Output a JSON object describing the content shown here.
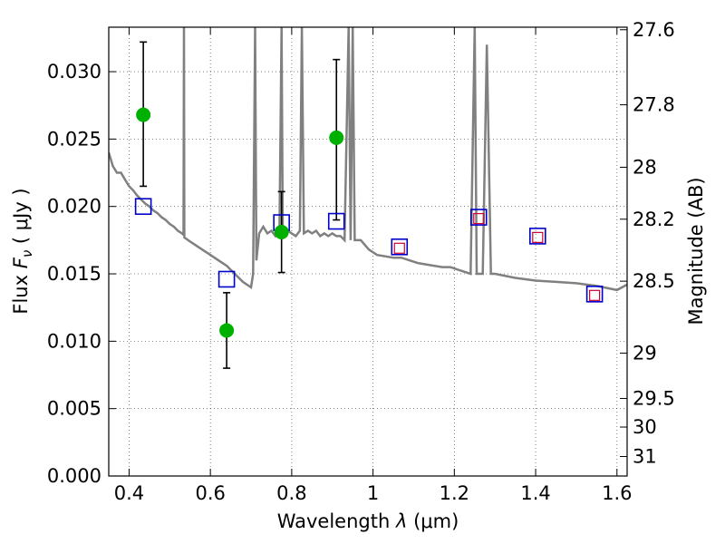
{
  "chart_data": {
    "type": "scatter",
    "xlabel": "Wavelength",
    "xlabel_symbol": "λ",
    "xlabel_unit": "(μm)",
    "ylabel": "Flux",
    "ylabel_symbol": "F",
    "ylabel_subscript": "ν",
    "ylabel_unit": "( μJy )",
    "y2label": "Magnitude (AB)",
    "xlim": [
      0.35,
      1.625
    ],
    "ylim": [
      0.0,
      0.0333
    ],
    "grid": true,
    "x_ticks": [
      0.4,
      0.6,
      0.8,
      1.0,
      1.2,
      1.4,
      1.6
    ],
    "x_tick_labels": [
      "0.4",
      "0.6",
      "0.8",
      "1",
      "1.2",
      "1.4",
      "1.6"
    ],
    "y_ticks": [
      0.0,
      0.005,
      0.01,
      0.015,
      0.02,
      0.025,
      0.03
    ],
    "y_tick_labels": [
      "0.000",
      "0.005",
      "0.010",
      "0.015",
      "0.020",
      "0.025",
      "0.030"
    ],
    "right_axis_ticks": [
      {
        "mag": 27.6,
        "label": "27.6"
      },
      {
        "mag": 27.8,
        "label": "27.8"
      },
      {
        "mag": 28.0,
        "label": "28"
      },
      {
        "mag": 28.2,
        "label": "28.2"
      },
      {
        "mag": 28.5,
        "label": "28.5"
      },
      {
        "mag": 29.0,
        "label": "29"
      },
      {
        "mag": 29.5,
        "label": "29.5"
      },
      {
        "mag": 30.0,
        "label": "30"
      },
      {
        "mag": 31.0,
        "label": "31"
      }
    ],
    "series": [
      {
        "kind": "spectrum",
        "color": "#808080",
        "points": [
          [
            0.35,
            0.024
          ],
          [
            0.36,
            0.023
          ],
          [
            0.37,
            0.0225
          ],
          [
            0.38,
            0.0225
          ],
          [
            0.39,
            0.022
          ],
          [
            0.4,
            0.0215
          ],
          [
            0.41,
            0.0212
          ],
          [
            0.42,
            0.0208
          ],
          [
            0.43,
            0.0205
          ],
          [
            0.44,
            0.0202
          ],
          [
            0.45,
            0.02
          ],
          [
            0.46,
            0.0197
          ],
          [
            0.47,
            0.0195
          ],
          [
            0.48,
            0.0192
          ],
          [
            0.49,
            0.019
          ],
          [
            0.5,
            0.0187
          ],
          [
            0.51,
            0.0185
          ],
          [
            0.52,
            0.0182
          ],
          [
            0.53,
            0.018
          ],
          [
            0.534,
            0.0179
          ],
          [
            0.535,
            0.0333
          ],
          [
            0.536,
            0.0177
          ],
          [
            0.55,
            0.0174
          ],
          [
            0.56,
            0.0172
          ],
          [
            0.58,
            0.0168
          ],
          [
            0.6,
            0.0164
          ],
          [
            0.62,
            0.016
          ],
          [
            0.64,
            0.0156
          ],
          [
            0.66,
            0.015
          ],
          [
            0.68,
            0.0144
          ],
          [
            0.7,
            0.014
          ],
          [
            0.705,
            0.015
          ],
          [
            0.71,
            0.0333
          ],
          [
            0.713,
            0.016
          ],
          [
            0.72,
            0.018
          ],
          [
            0.73,
            0.0185
          ],
          [
            0.74,
            0.018
          ],
          [
            0.75,
            0.0182
          ],
          [
            0.76,
            0.0178
          ],
          [
            0.77,
            0.0182
          ],
          [
            0.775,
            0.0333
          ],
          [
            0.778,
            0.018
          ],
          [
            0.79,
            0.0182
          ],
          [
            0.8,
            0.018
          ],
          [
            0.81,
            0.0178
          ],
          [
            0.82,
            0.0182
          ],
          [
            0.825,
            0.0333
          ],
          [
            0.83,
            0.018
          ],
          [
            0.84,
            0.0182
          ],
          [
            0.85,
            0.018
          ],
          [
            0.86,
            0.0182
          ],
          [
            0.87,
            0.0178
          ],
          [
            0.88,
            0.018
          ],
          [
            0.89,
            0.0178
          ],
          [
            0.9,
            0.018
          ],
          [
            0.91,
            0.0178
          ],
          [
            0.92,
            0.0178
          ],
          [
            0.93,
            0.0175
          ],
          [
            0.94,
            0.0333
          ],
          [
            0.945,
            0.0175
          ],
          [
            0.95,
            0.0333
          ],
          [
            0.955,
            0.0175
          ],
          [
            0.97,
            0.0175
          ],
          [
            0.99,
            0.0168
          ],
          [
            1.01,
            0.0164
          ],
          [
            1.03,
            0.0163
          ],
          [
            1.05,
            0.0162
          ],
          [
            1.07,
            0.0162
          ],
          [
            1.09,
            0.016
          ],
          [
            1.11,
            0.0158
          ],
          [
            1.13,
            0.0157
          ],
          [
            1.15,
            0.0156
          ],
          [
            1.17,
            0.0155
          ],
          [
            1.19,
            0.0155
          ],
          [
            1.22,
            0.0152
          ],
          [
            1.24,
            0.015
          ],
          [
            1.25,
            0.0333
          ],
          [
            1.255,
            0.015
          ],
          [
            1.27,
            0.015
          ],
          [
            1.28,
            0.032
          ],
          [
            1.29,
            0.015
          ],
          [
            1.3,
            0.015
          ],
          [
            1.35,
            0.0147
          ],
          [
            1.4,
            0.0145
          ],
          [
            1.45,
            0.0144
          ],
          [
            1.5,
            0.0143
          ],
          [
            1.55,
            0.0141
          ],
          [
            1.6,
            0.0138
          ],
          [
            1.625,
            0.0142
          ]
        ]
      },
      {
        "kind": "observed",
        "color": "#00b000",
        "points": [
          {
            "x": 0.435,
            "y": 0.0268,
            "yerr_low": 0.0215,
            "yerr_high": 0.0322
          },
          {
            "x": 0.64,
            "y": 0.0108,
            "yerr_low": 0.008,
            "yerr_high": 0.0136
          },
          {
            "x": 0.775,
            "y": 0.0181,
            "yerr_low": 0.0151,
            "yerr_high": 0.0211
          },
          {
            "x": 0.91,
            "y": 0.0251,
            "yerr_low": 0.019,
            "yerr_high": 0.0309
          }
        ]
      },
      {
        "kind": "model_photometry",
        "color": "#0000cc",
        "points": [
          {
            "x": 0.435,
            "y": 0.02
          },
          {
            "x": 0.64,
            "y": 0.0146
          },
          {
            "x": 0.775,
            "y": 0.0188
          },
          {
            "x": 0.91,
            "y": 0.0189
          },
          {
            "x": 1.065,
            "y": 0.017
          },
          {
            "x": 1.26,
            "y": 0.0192
          },
          {
            "x": 1.405,
            "y": 0.0178
          },
          {
            "x": 1.545,
            "y": 0.0135
          }
        ]
      },
      {
        "kind": "nir_photometry",
        "color": "#cc0033",
        "points": [
          {
            "x": 1.065,
            "y": 0.0169
          },
          {
            "x": 1.26,
            "y": 0.0191
          },
          {
            "x": 1.405,
            "y": 0.0177
          },
          {
            "x": 1.545,
            "y": 0.0134
          }
        ]
      }
    ]
  }
}
